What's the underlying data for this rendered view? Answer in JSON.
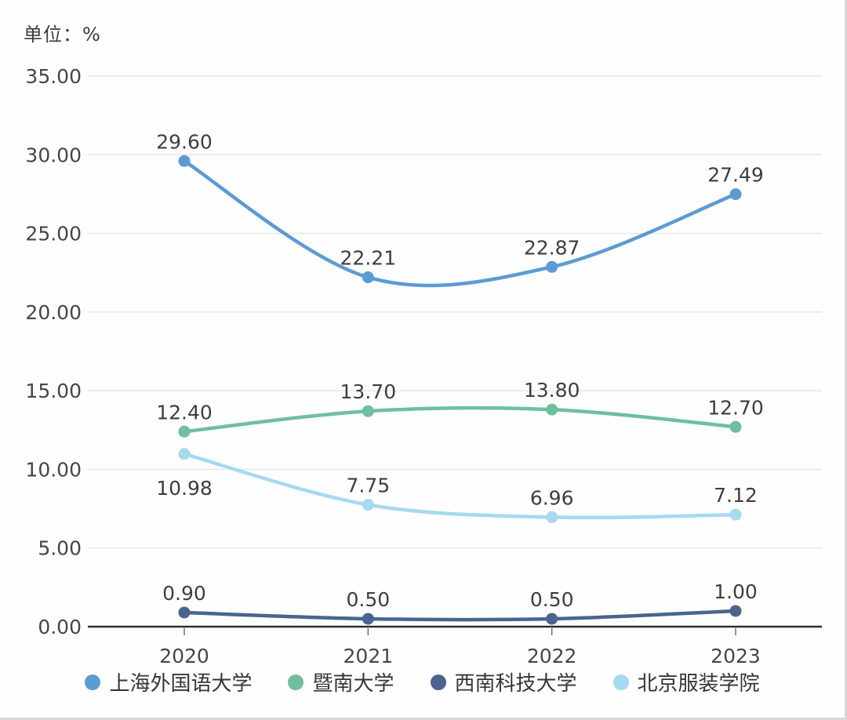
{
  "unit_label": "单位：%",
  "chart_data": {
    "type": "line",
    "title": "",
    "unit": "%",
    "categories": [
      "2020",
      "2021",
      "2022",
      "2023"
    ],
    "series": [
      {
        "name": "上海外国语大学",
        "color": "#5B9BD5",
        "values": [
          29.6,
          22.21,
          22.87,
          27.49
        ],
        "point_labels": [
          "29.60",
          "22.21",
          "22.87",
          "27.49"
        ],
        "label_pos": [
          "above",
          "above",
          "above",
          "above"
        ]
      },
      {
        "name": "暨南大学",
        "color": "#6FBF9F",
        "values": [
          12.4,
          13.7,
          13.8,
          12.7
        ],
        "point_labels": [
          "12.40",
          "13.70",
          "13.80",
          "12.70"
        ],
        "label_pos": [
          "above",
          "above",
          "above",
          "above"
        ]
      },
      {
        "name": "西南科技大学",
        "color": "#4A6490",
        "values": [
          0.9,
          0.5,
          0.5,
          1.0
        ],
        "point_labels": [
          "0.90",
          "0.50",
          "0.50",
          "1.00"
        ],
        "label_pos": [
          "above",
          "above",
          "above",
          "above"
        ]
      },
      {
        "name": "北京服装学院",
        "color": "#A7D9EF",
        "values": [
          10.98,
          7.75,
          6.96,
          7.12
        ],
        "point_labels": [
          "10.98",
          "7.75",
          "6.96",
          "7.12"
        ],
        "label_pos": [
          "below",
          "above",
          "above",
          "above"
        ]
      }
    ],
    "ylim": [
      0,
      35
    ],
    "y_tick_step": 5,
    "y_tick_labels": [
      "35.00",
      "30.00",
      "25.00",
      "20.00",
      "15.00",
      "10.00",
      "5.00",
      "0.00"
    ],
    "grid": true,
    "line_style": "smooth",
    "legend_position": "bottom",
    "colors": {
      "gridline": "#e5e5e8",
      "axis_line": "#2e2e2e",
      "tick_mark": "#707070",
      "axis_text": "#464646",
      "point_label_text": "#3e3e3e",
      "background": "#fefefe"
    }
  }
}
